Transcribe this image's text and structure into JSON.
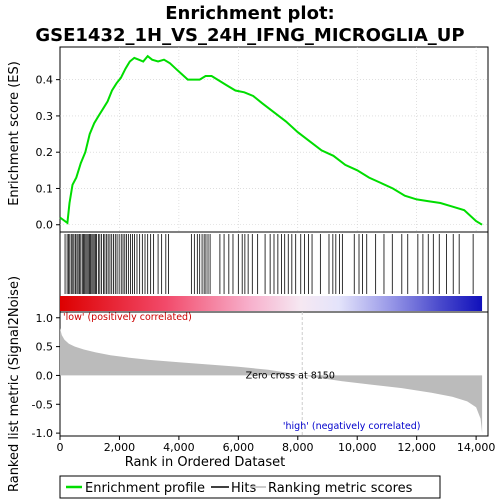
{
  "chart_data": {
    "type": "line",
    "title_line1": "Enrichment plot:",
    "title_line2": "GSE1432_1H_VS_24H_IFNG_MICROGLIA_UP",
    "xlabel": "Rank in Ordered Dataset",
    "ylabel_top": "Enrichment score (ES)",
    "ylabel_bottom": "Ranked list metric (Signal2Noise)",
    "x_range": [
      0,
      14400
    ],
    "n_genes": 14200,
    "x_ticks": [
      0,
      2000,
      4000,
      6000,
      8000,
      10000,
      12000,
      14000
    ],
    "x_tick_labels": [
      "0",
      "2,000",
      "4,000",
      "6,000",
      "8,000",
      "10,000",
      "12,000",
      "14,000"
    ],
    "es_ylim": [
      -0.02,
      0.49
    ],
    "es_ticks": [
      0.0,
      0.1,
      0.2,
      0.3,
      0.4
    ],
    "es_tick_labels": [
      "0.0",
      "0.1",
      "0.2",
      "0.3",
      "0.4"
    ],
    "metric_ylim": [
      -1.05,
      1.1
    ],
    "metric_ticks": [
      1.0,
      0.5,
      0.0,
      -0.5,
      -1.0
    ],
    "metric_tick_labels": [
      "1.0",
      "0.5",
      "0.0",
      "-0.5",
      "-1.0"
    ],
    "zero_cross_rank": 8150,
    "zero_cross_label": "Zero cross at 8150",
    "low_label": "'low' (positively correlated)",
    "high_label": "'high' (negatively correlated)",
    "es_profile": {
      "x": [
        0,
        250,
        320,
        420,
        550,
        700,
        850,
        1000,
        1150,
        1300,
        1450,
        1600,
        1750,
        1900,
        2050,
        2200,
        2350,
        2500,
        2650,
        2800,
        2950,
        3100,
        3300,
        3500,
        3700,
        3900,
        4100,
        4300,
        4500,
        4700,
        4900,
        5100,
        5300,
        5600,
        5900,
        6200,
        6500,
        6800,
        7200,
        7600,
        8000,
        8400,
        8800,
        9200,
        9600,
        10000,
        10400,
        10800,
        11200,
        11600,
        12000,
        12400,
        12800,
        13200,
        13600,
        14000,
        14200
      ],
      "y": [
        0.02,
        0.005,
        0.06,
        0.11,
        0.13,
        0.17,
        0.2,
        0.25,
        0.28,
        0.3,
        0.32,
        0.34,
        0.37,
        0.39,
        0.405,
        0.43,
        0.45,
        0.46,
        0.455,
        0.45,
        0.465,
        0.455,
        0.45,
        0.455,
        0.445,
        0.43,
        0.415,
        0.4,
        0.4,
        0.4,
        0.41,
        0.41,
        0.4,
        0.385,
        0.37,
        0.365,
        0.355,
        0.335,
        0.31,
        0.285,
        0.255,
        0.23,
        0.205,
        0.19,
        0.165,
        0.15,
        0.13,
        0.115,
        0.1,
        0.08,
        0.07,
        0.065,
        0.06,
        0.05,
        0.04,
        0.01,
        0.0
      ]
    },
    "hits": [
      170,
      240,
      290,
      330,
      380,
      430,
      470,
      520,
      570,
      610,
      660,
      700,
      750,
      790,
      830,
      870,
      910,
      950,
      990,
      1030,
      1070,
      1110,
      1150,
      1190,
      1230,
      1290,
      1340,
      1400,
      1460,
      1510,
      1570,
      1620,
      1680,
      1740,
      1800,
      1860,
      1920,
      1990,
      2060,
      2120,
      2180,
      2240,
      2300,
      2370,
      2440,
      2510,
      2590,
      2680,
      2770,
      2860,
      2950,
      3050,
      3150,
      3300,
      3420,
      3560,
      3650,
      4420,
      4520,
      4620,
      4700,
      4780,
      4850,
      4910,
      4980,
      5050,
      5380,
      5520,
      5680,
      5820,
      6000,
      6130,
      6220,
      6330,
      6470,
      6650,
      6900,
      7070,
      7200,
      7330,
      7450,
      7560,
      7680,
      7800,
      7930,
      8100,
      8230,
      8360,
      8480,
      8760,
      9050,
      9180,
      9280,
      9400,
      9500,
      9900,
      10060,
      10180,
      10320,
      10620,
      10900,
      11180,
      11500,
      11700,
      12040,
      12210,
      12390,
      12560,
      12760,
      13000,
      13230,
      13430,
      13900
    ],
    "metric": {
      "x": [
        0,
        60,
        150,
        300,
        500,
        800,
        1200,
        1700,
        2300,
        3000,
        4000,
        5000,
        6000,
        7000,
        7500,
        8150,
        8800,
        9500,
        10500,
        11500,
        12500,
        13200,
        13700,
        14000,
        14150,
        14200
      ],
      "y": [
        0.82,
        0.7,
        0.62,
        0.55,
        0.5,
        0.45,
        0.4,
        0.35,
        0.31,
        0.27,
        0.23,
        0.19,
        0.15,
        0.1,
        0.06,
        0.0,
        -0.05,
        -0.1,
        -0.16,
        -0.22,
        -0.3,
        -0.37,
        -0.45,
        -0.55,
        -0.75,
        -1.0
      ]
    },
    "legend": [
      {
        "label": "Enrichment profile",
        "color": "#00dd00"
      },
      {
        "label": "Hits",
        "color": "#000000"
      },
      {
        "label": "Ranking metric scores",
        "color": "#bbbbbb"
      }
    ],
    "colors": {
      "es_line": "#00dd00",
      "metric_fill": "#bbbbbb",
      "low_text": "#cc0000",
      "high_text": "#0000cc",
      "grid_line": "#cccccc"
    }
  }
}
